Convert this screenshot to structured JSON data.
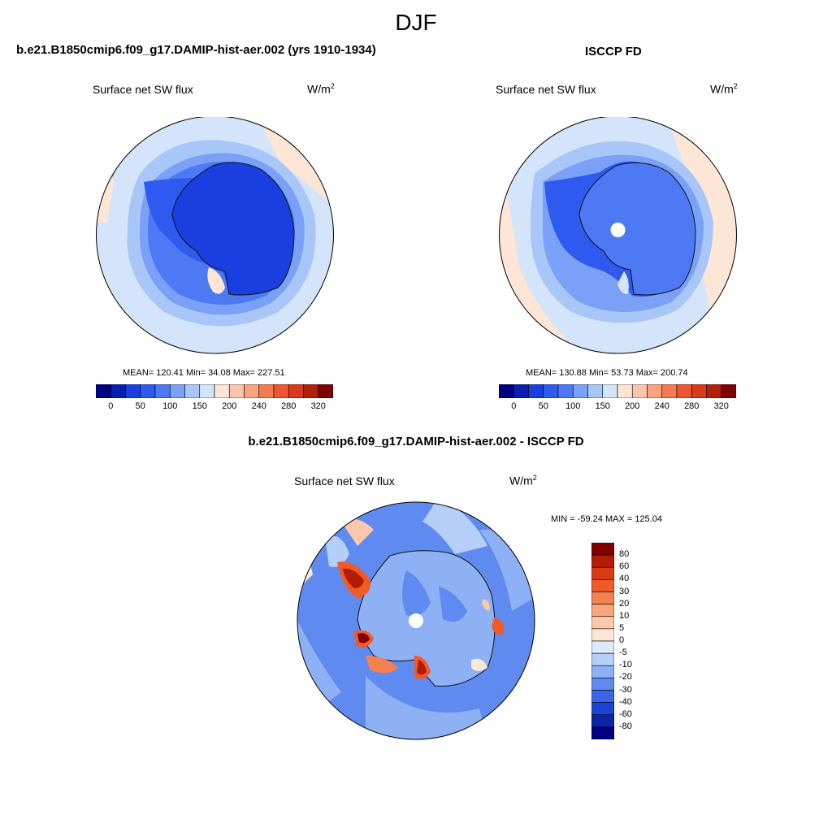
{
  "figure": {
    "title": "DJF"
  },
  "panels": {
    "model": {
      "title": "b.e21.B1850cmip6.f09_g17.DAMIP-hist-aer.002 (yrs 1910-1934)",
      "variable": "Surface net SW flux",
      "units_base": "W/m",
      "units_exp": "2",
      "stats": "MEAN= 120.41  Min=  34.08  Max= 227.51"
    },
    "obs": {
      "title": "ISCCP FD",
      "variable": "Surface net SW flux",
      "units_base": "W/m",
      "units_exp": "2",
      "stats": "MEAN= 130.88  Min=  53.73  Max= 200.74"
    },
    "diff": {
      "title": "b.e21.B1850cmip6.f09_g17.DAMIP-hist-aer.002 - ISCCP FD",
      "variable": "Surface net SW flux",
      "units_base": "W/m",
      "units_exp": "2",
      "stats": "MIN = -59.24 MAX = 125.04"
    }
  },
  "colorbars": {
    "absolute": {
      "tick_labels": [
        "0",
        "50",
        "100",
        "150",
        "200",
        "240",
        "280",
        "320"
      ],
      "colors": [
        "#000080",
        "#0a1fb0",
        "#1a3fe0",
        "#2e5af0",
        "#4d79f5",
        "#7ba0f7",
        "#a9c6f8",
        "#d4e5fb",
        "#fde6d6",
        "#fbc5ab",
        "#f8a37e",
        "#f47a52",
        "#ef5530",
        "#d93a17",
        "#b22008",
        "#800000"
      ]
    },
    "difference": {
      "tick_labels": [
        "80",
        "60",
        "40",
        "30",
        "20",
        "10",
        "5",
        "0",
        "-5",
        "-10",
        "-20",
        "-30",
        "-40",
        "-60",
        "-80"
      ],
      "colors": [
        "#800000",
        "#b31c04",
        "#d93a14",
        "#f05a28",
        "#f58050",
        "#f9a57c",
        "#fbc8ab",
        "#fde6d6",
        "#dbeafc",
        "#b5cff8",
        "#8eb0f4",
        "#5f8bf0",
        "#3a65ea",
        "#1c43d8",
        "#0a24a8",
        "#000080"
      ]
    }
  }
}
